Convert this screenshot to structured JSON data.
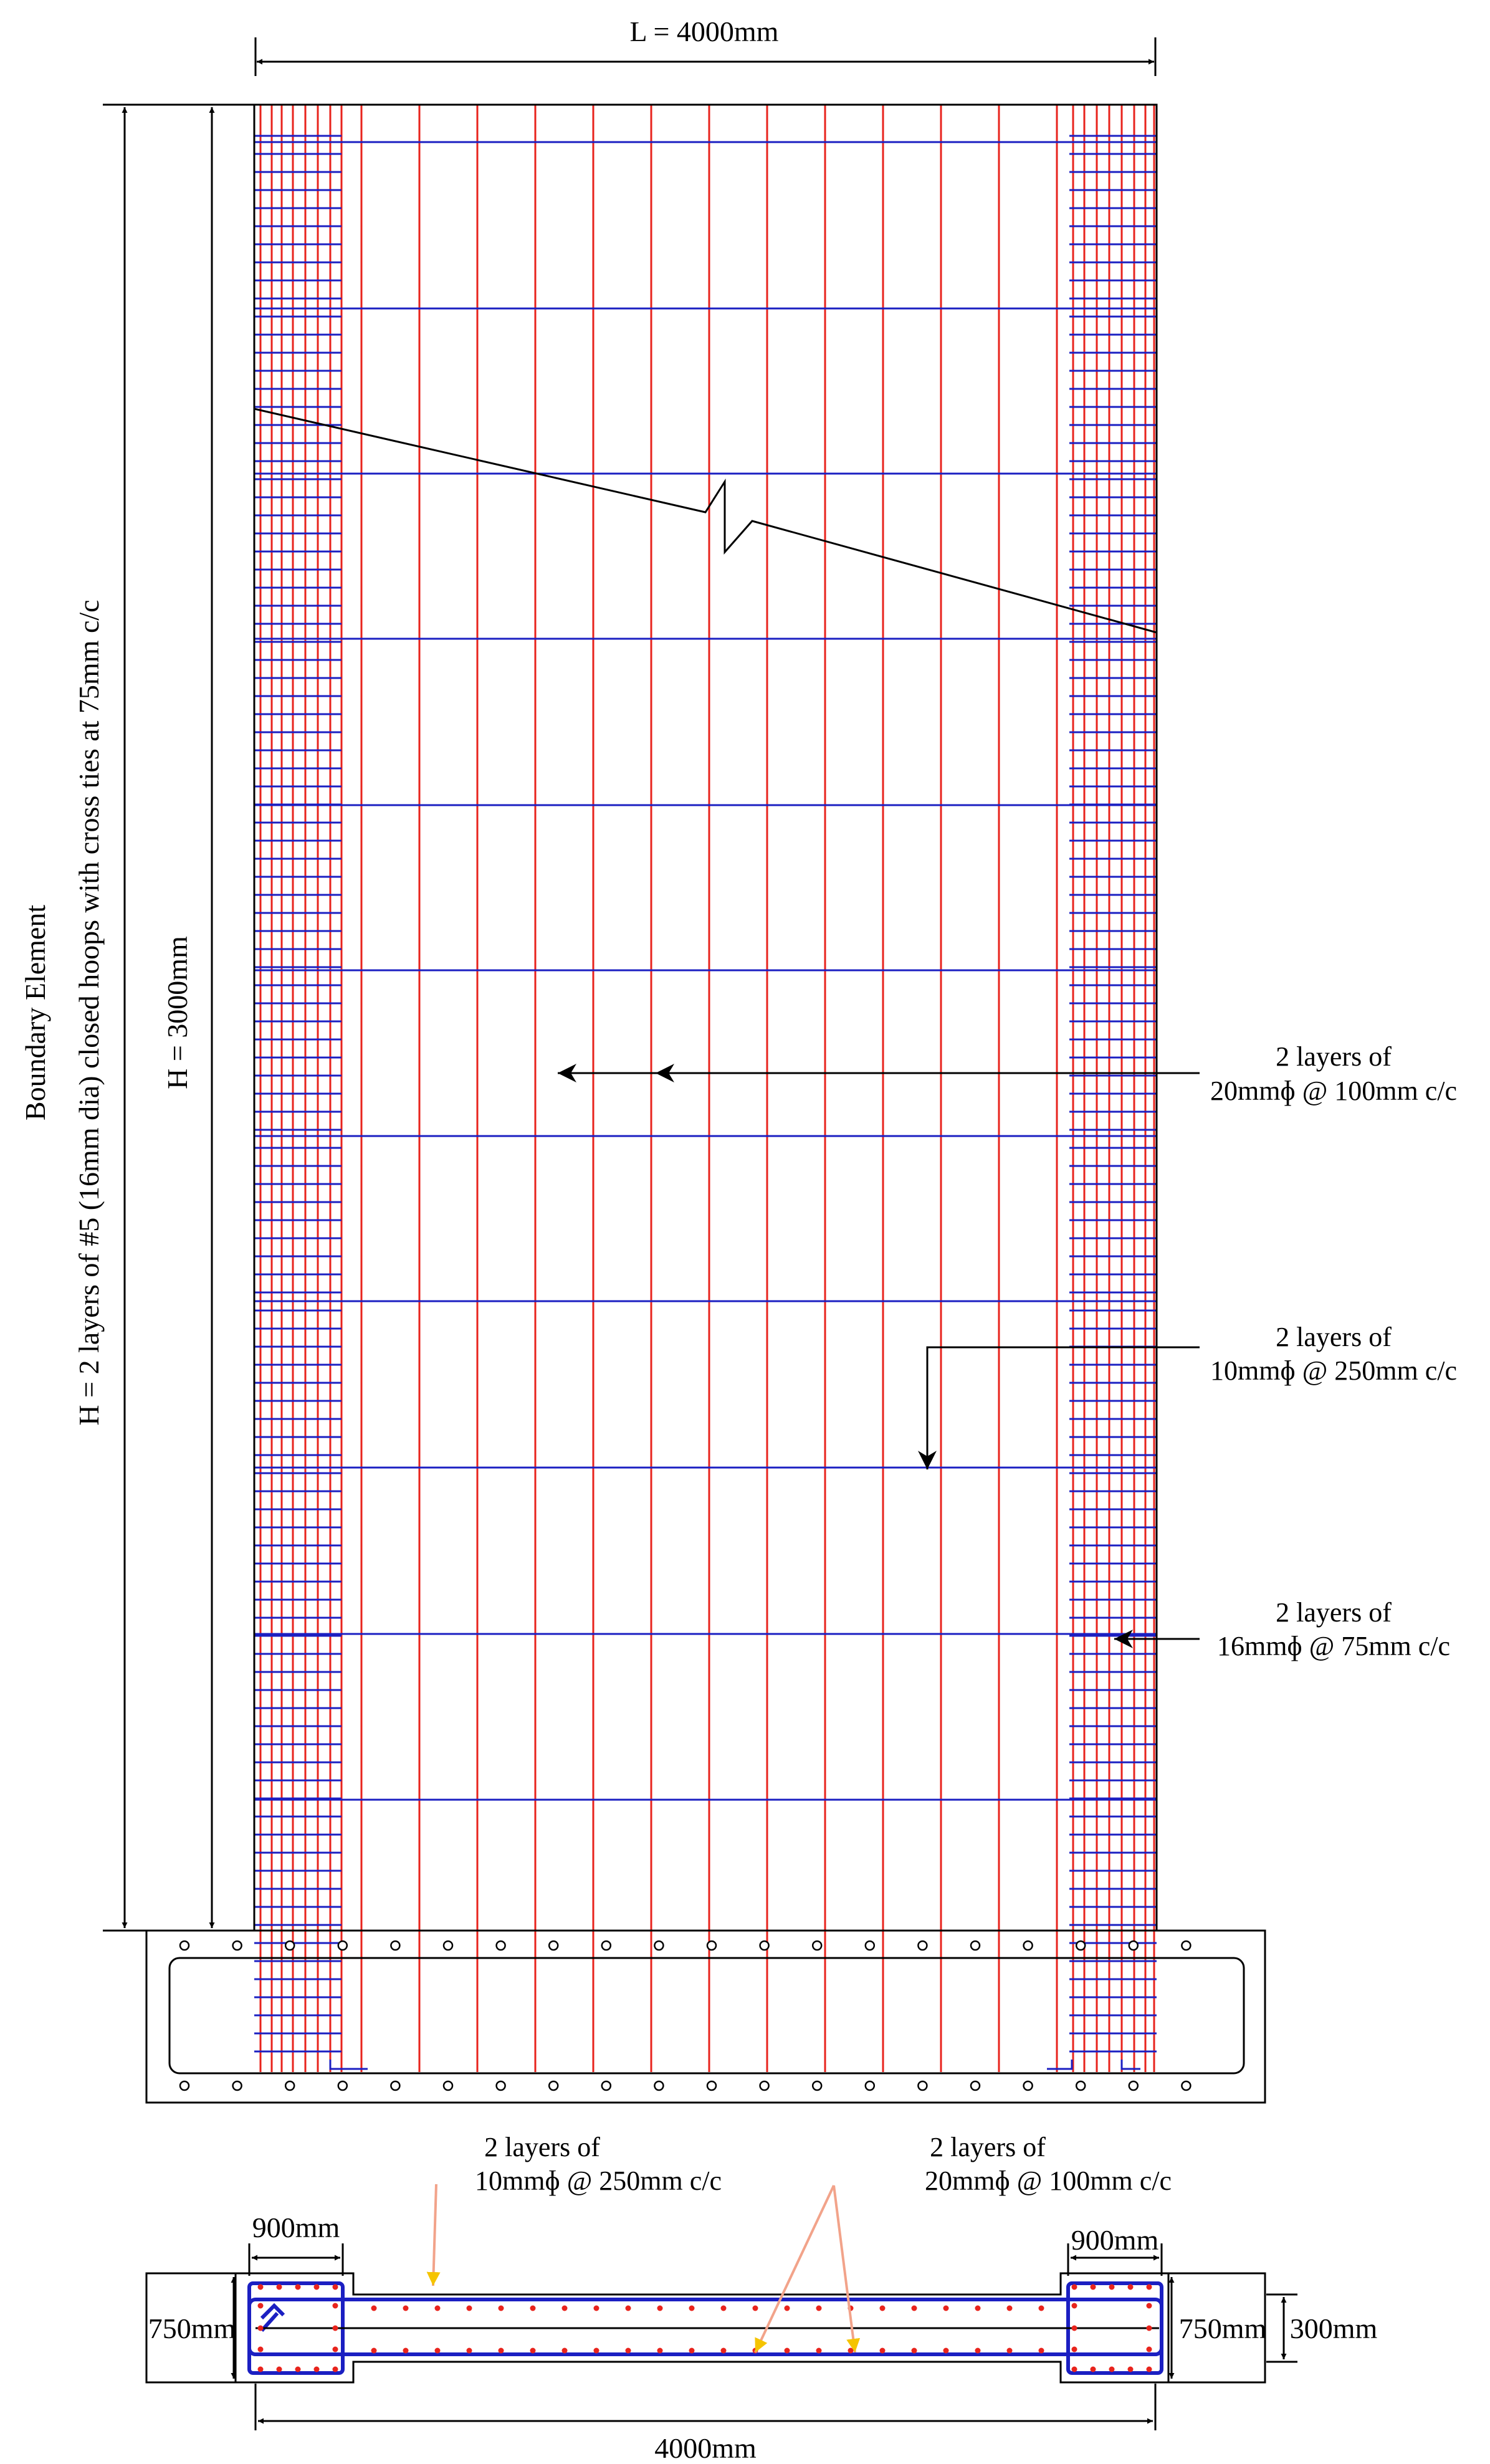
{
  "colors": {
    "vertical_bars": "#e8231c",
    "horizontal_bars": "#1b1fc2",
    "outline": "#000000",
    "section_pointer": "#f2a38a",
    "section_pointer_head": "#f5c400"
  },
  "elevation": {
    "length_label": "L = 4000mm",
    "height_label": "H = 3000mm",
    "boundary_title": "Boundary Element",
    "boundary_text": "H = 2 layers of #5 (16mm dia) closed hoops with cross ties at 75mm c/c",
    "callout_vertical": {
      "line1": "2 layers of",
      "line2": "20mmɸ @ 100mm c/c"
    },
    "callout_horizontal": {
      "line1": "2 layers of",
      "line2": "10mmɸ @ 250mm c/c"
    },
    "callout_boundary": {
      "line1": "2 layers of",
      "line2": "16mmɸ @ 75mm c/c"
    }
  },
  "section": {
    "callout_horizontal": {
      "line1": "2 layers of",
      "line2": "10mmɸ @ 250mm c/c"
    },
    "callout_vertical": {
      "line1": "2 layers of",
      "line2": "20mmɸ @ 100mm c/c"
    },
    "boundary_width_left": "900mm",
    "boundary_width_right": "900mm",
    "boundary_depth_left": "750mm",
    "boundary_depth_right": "750mm",
    "web_thickness": "300mm",
    "total_length": "4000mm"
  }
}
